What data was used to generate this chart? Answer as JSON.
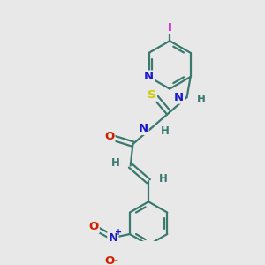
{
  "bg_color": "#e8e8e8",
  "bond_color": "#3a7a6e",
  "bond_width": 1.6,
  "atom_colors": {
    "N": "#1a1acc",
    "O": "#cc2200",
    "S": "#cccc00",
    "I": "#cc00cc",
    "H": "#3a7a6e",
    "C": "#3a7a6e"
  },
  "font_size": 8.5,
  "fig_size": [
    3.0,
    3.0
  ],
  "dpi": 100
}
